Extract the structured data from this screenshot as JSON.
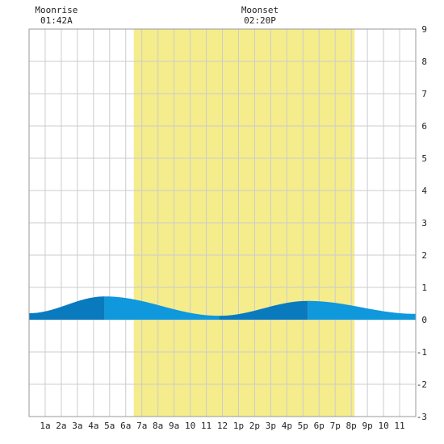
{
  "chart_data": {
    "type": "area",
    "x_tick_labels": [
      "1a",
      "2a",
      "3a",
      "4a",
      "5a",
      "6a",
      "7a",
      "8a",
      "9a",
      "10",
      "11",
      "12",
      "1p",
      "2p",
      "3p",
      "4p",
      "5p",
      "6p",
      "7p",
      "8p",
      "9p",
      "10",
      "11"
    ],
    "y_tick_labels": [
      "9",
      "8",
      "7",
      "6",
      "5",
      "4",
      "3",
      "2",
      "1",
      "0",
      "-1",
      "-2",
      "-3"
    ],
    "xlim": [
      0,
      24
    ],
    "ylim": [
      -3,
      9
    ],
    "grid": true,
    "daylight": {
      "start_hour": 6.5,
      "end_hour": 20.2
    },
    "annotations": [
      {
        "label": "Moonrise",
        "time": "01:42A",
        "hour": 1.7
      },
      {
        "label": "Moonset",
        "time": "02:20P",
        "hour": 14.33
      }
    ],
    "tide_series": {
      "hours": [
        0,
        4.7,
        11.8,
        17.3,
        24
      ],
      "heights": [
        0.2,
        0.72,
        0.12,
        0.58,
        0.18
      ]
    },
    "colors": {
      "daylight": "#f5ec8c",
      "water_dark": "#0a7abf",
      "water_light": "#0f98dc",
      "grid": "#cccccc"
    }
  }
}
